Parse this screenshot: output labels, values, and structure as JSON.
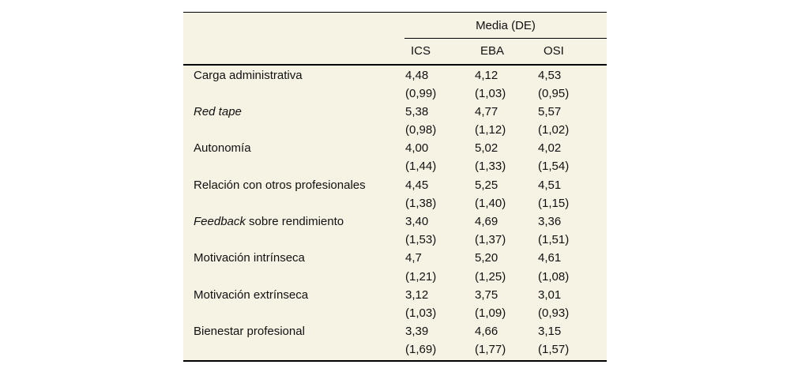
{
  "table": {
    "header_group": "Media (DE)",
    "columns": [
      "ICS",
      "EBA",
      "OSI"
    ],
    "rows": [
      {
        "label_italic": "",
        "label_rest": "Carga administrativa",
        "means": [
          "4,48",
          "4,12",
          "4,53"
        ],
        "sds": [
          "(0,99)",
          "(1,03)",
          "(0,95)"
        ]
      },
      {
        "label_italic": "Red tape",
        "label_rest": "",
        "means": [
          "5,38",
          "4,77",
          "5,57"
        ],
        "sds": [
          "(0,98)",
          "(1,12)",
          "(1,02)"
        ]
      },
      {
        "label_italic": "",
        "label_rest": "Autonomía",
        "means": [
          "4,00",
          "5,02",
          "4,02"
        ],
        "sds": [
          "(1,44)",
          "(1,33)",
          "(1,54)"
        ]
      },
      {
        "label_italic": "",
        "label_rest": "Relación con otros profesionales",
        "means": [
          "4,45",
          "5,25",
          "4,51"
        ],
        "sds": [
          "(1,38)",
          "(1,40)",
          "(1,15)"
        ]
      },
      {
        "label_italic": "Feedback",
        "label_rest": " sobre rendimiento",
        "means": [
          "3,40",
          "4,69",
          "3,36"
        ],
        "sds": [
          "(1,53)",
          "(1,37)",
          "(1,51)"
        ]
      },
      {
        "label_italic": "",
        "label_rest": "Motivación intrínseca",
        "means": [
          "4,7",
          "5,20",
          "4,61"
        ],
        "sds": [
          "(1,21)",
          "(1,25)",
          "(1,08)"
        ]
      },
      {
        "label_italic": "",
        "label_rest": "Motivación extrínseca",
        "means": [
          "3,12",
          "3,75",
          "3,01"
        ],
        "sds": [
          "(1,03)",
          "(1,09)",
          "(0,93)"
        ]
      },
      {
        "label_italic": "",
        "label_rest": "Bienestar profesional",
        "means": [
          "3,39",
          "4,66",
          "3,15"
        ],
        "sds": [
          "(1,69)",
          "(1,77)",
          "(1,57)"
        ]
      }
    ]
  },
  "colors": {
    "table_background": "#f6f2e4",
    "rule": "#000000",
    "text": "#111111"
  },
  "chart_data": {
    "type": "table",
    "title": "Media (DE)",
    "categories": [
      "Carga administrativa",
      "Red tape",
      "Autonomía",
      "Relación con otros profesionales",
      "Feedback sobre rendimiento",
      "Motivación intrínseca",
      "Motivación extrínseca",
      "Bienestar profesional"
    ],
    "series": [
      {
        "name": "ICS",
        "means": [
          4.48,
          5.38,
          4.0,
          4.45,
          3.4,
          4.7,
          3.12,
          3.39
        ],
        "sds": [
          0.99,
          0.98,
          1.44,
          1.38,
          1.53,
          1.21,
          1.03,
          1.69
        ]
      },
      {
        "name": "EBA",
        "means": [
          4.12,
          4.77,
          5.02,
          5.25,
          4.69,
          5.2,
          3.75,
          4.66
        ],
        "sds": [
          1.03,
          1.12,
          1.33,
          1.4,
          1.37,
          1.25,
          1.09,
          1.77
        ]
      },
      {
        "name": "OSI",
        "means": [
          4.53,
          5.57,
          4.02,
          4.51,
          3.36,
          4.61,
          3.01,
          3.15
        ],
        "sds": [
          0.95,
          1.02,
          1.54,
          1.15,
          1.51,
          1.08,
          0.93,
          1.57
        ]
      }
    ]
  }
}
